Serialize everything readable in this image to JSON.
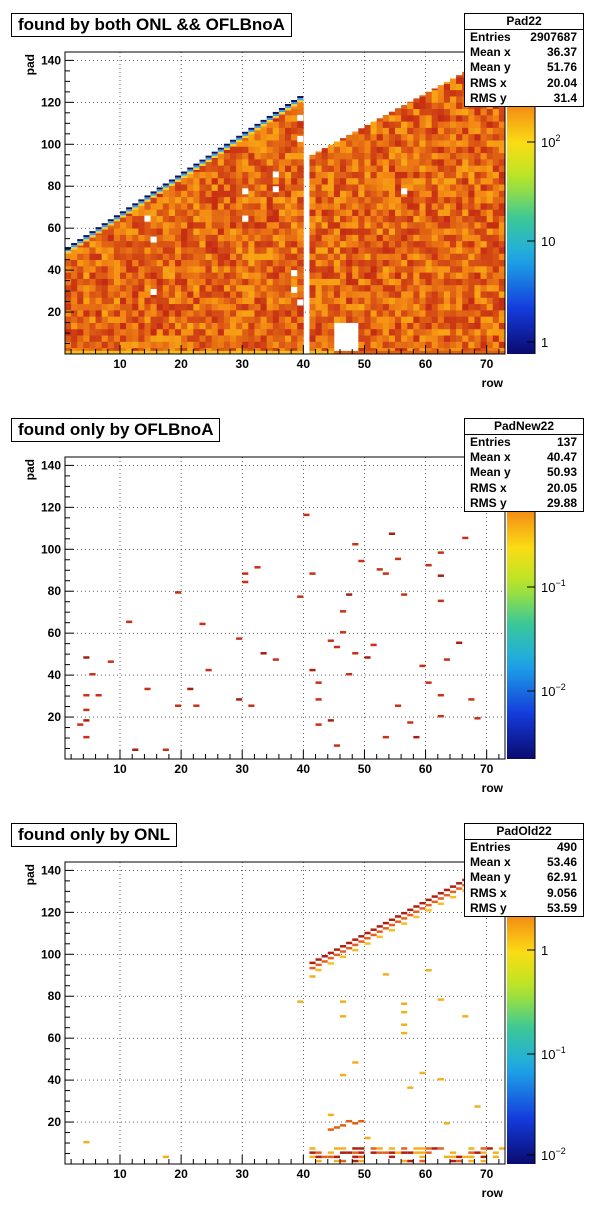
{
  "panels": [
    {
      "title": "found by both ONL && OFLBnoA",
      "stats": {
        "name": "Pad22",
        "rows": [
          {
            "label": "Entries",
            "value": "2907687"
          },
          {
            "label": "Mean x",
            "value": "36.37"
          },
          {
            "label": "Mean y",
            "value": "51.76"
          },
          {
            "label": "RMS x",
            "value": "20.04"
          },
          {
            "label": "RMS y",
            "value": "31.4"
          }
        ]
      },
      "xlabel": "row",
      "ylabel": "pad",
      "z_ticks": [
        {
          "base": "10",
          "exp": "2"
        },
        {
          "base": "10",
          "exp": ""
        },
        {
          "base": "1",
          "exp": ""
        }
      ]
    },
    {
      "title": "found only by OFLBnoA",
      "stats": {
        "name": "PadNew22",
        "rows": [
          {
            "label": "Entries",
            "value": "137"
          },
          {
            "label": "Mean x",
            "value": "40.47"
          },
          {
            "label": "Mean y",
            "value": "50.93"
          },
          {
            "label": "RMS x",
            "value": "20.05"
          },
          {
            "label": "RMS y",
            "value": "29.88"
          }
        ]
      },
      "xlabel": "row",
      "ylabel": "pad",
      "z_ticks": [
        {
          "base": "10",
          "exp": "−1"
        },
        {
          "base": "10",
          "exp": "−2"
        }
      ]
    },
    {
      "title": "found only by ONL",
      "stats": {
        "name": "PadOld22",
        "rows": [
          {
            "label": "Entries",
            "value": "490"
          },
          {
            "label": "Mean x",
            "value": "53.46"
          },
          {
            "label": "Mean y",
            "value": "62.91"
          },
          {
            "label": "RMS x",
            "value": "9.056"
          },
          {
            "label": "RMS y",
            "value": "53.59"
          }
        ]
      },
      "xlabel": "row",
      "ylabel": "pad",
      "z_ticks": [
        {
          "base": "1",
          "exp": ""
        },
        {
          "base": "10",
          "exp": "−1"
        },
        {
          "base": "10",
          "exp": "−2"
        }
      ]
    }
  ],
  "chart_data": [
    {
      "type": "heatmap",
      "title": "found by both ONL && OFLBnoA",
      "xlabel": "row",
      "ylabel": "pad",
      "xlim": [
        1,
        73
      ],
      "ylim": [
        0,
        144
      ],
      "x_ticks": [
        10,
        20,
        30,
        40,
        50,
        60,
        70
      ],
      "y_ticks": [
        20,
        40,
        60,
        80,
        100,
        120,
        140
      ],
      "z_scale": "log",
      "grid": true,
      "regions": [
        {
          "rows": [
            1,
            39
          ],
          "pad_max_at_row1": 50,
          "pad_max_at_row39": 120,
          "value": "~200"
        },
        {
          "rows": [
            41,
            73
          ],
          "pad_max_at_row41": 95,
          "pad_max_at_row73": 144,
          "value": "~200"
        },
        {
          "rows": [
            45,
            48
          ],
          "pads": [
            0,
            14
          ],
          "value": 0
        }
      ]
    },
    {
      "type": "heatmap",
      "title": "found only by OFLBnoA",
      "xlabel": "row",
      "ylabel": "pad",
      "xlim": [
        1,
        73
      ],
      "ylim": [
        0,
        144
      ],
      "x_ticks": [
        10,
        20,
        30,
        40,
        50,
        60,
        70
      ],
      "y_ticks": [
        20,
        40,
        60,
        80,
        100,
        120,
        140
      ],
      "z_scale": "log",
      "grid": true,
      "cells": [
        [
          4,
          48
        ],
        [
          5,
          40
        ],
        [
          4,
          30
        ],
        [
          6,
          30
        ],
        [
          4,
          23
        ],
        [
          4,
          18
        ],
        [
          3,
          16
        ],
        [
          4,
          10
        ],
        [
          8,
          46
        ],
        [
          11,
          65
        ],
        [
          12,
          4
        ],
        [
          14,
          33
        ],
        [
          17,
          4
        ],
        [
          19,
          79
        ],
        [
          19,
          25
        ],
        [
          21,
          33
        ],
        [
          22,
          25
        ],
        [
          23,
          64
        ],
        [
          24,
          42
        ],
        [
          29,
          57
        ],
        [
          29,
          28
        ],
        [
          30,
          88
        ],
        [
          30,
          84
        ],
        [
          31,
          25
        ],
        [
          32,
          91
        ],
        [
          33,
          50
        ],
        [
          35,
          47
        ],
        [
          39,
          77
        ],
        [
          40,
          116
        ],
        [
          41,
          88
        ],
        [
          41,
          42
        ],
        [
          42,
          36
        ],
        [
          42,
          28
        ],
        [
          42,
          16
        ],
        [
          44,
          56
        ],
        [
          44,
          18
        ],
        [
          45,
          53
        ],
        [
          45,
          6
        ],
        [
          46,
          70
        ],
        [
          46,
          60
        ],
        [
          47,
          78
        ],
        [
          47,
          40
        ],
        [
          48,
          102
        ],
        [
          48,
          50
        ],
        [
          49,
          94
        ],
        [
          50,
          48
        ],
        [
          51,
          54
        ],
        [
          52,
          90
        ],
        [
          53,
          88
        ],
        [
          53,
          10
        ],
        [
          54,
          107
        ],
        [
          55,
          95
        ],
        [
          55,
          25
        ],
        [
          56,
          78
        ],
        [
          57,
          17
        ],
        [
          58,
          10
        ],
        [
          59,
          44
        ],
        [
          60,
          92
        ],
        [
          60,
          36
        ],
        [
          62,
          98
        ],
        [
          62,
          87
        ],
        [
          62,
          75
        ],
        [
          62,
          30
        ],
        [
          62,
          20
        ],
        [
          63,
          47
        ],
        [
          65,
          55
        ],
        [
          66,
          105
        ],
        [
          67,
          28
        ],
        [
          68,
          19
        ]
      ]
    },
    {
      "type": "heatmap",
      "title": "found only by ONL",
      "xlabel": "row",
      "ylabel": "pad",
      "xlim": [
        1,
        73
      ],
      "ylim": [
        0,
        144
      ],
      "x_ticks": [
        10,
        20,
        30,
        40,
        50,
        60,
        70
      ],
      "y_ticks": [
        20,
        40,
        60,
        80,
        100,
        120,
        140
      ],
      "z_scale": "log",
      "grid": true,
      "features": [
        {
          "kind": "diagonal-edge",
          "row_from": 41,
          "row_to": 73,
          "pad_from": 95,
          "pad_to": 144
        },
        {
          "kind": "bottom-band",
          "rows": [
            41,
            73
          ],
          "pads": [
            1,
            8
          ]
        },
        {
          "kind": "cluster",
          "rows": [
            44,
            49
          ],
          "pads": [
            14,
            22
          ]
        }
      ]
    }
  ]
}
